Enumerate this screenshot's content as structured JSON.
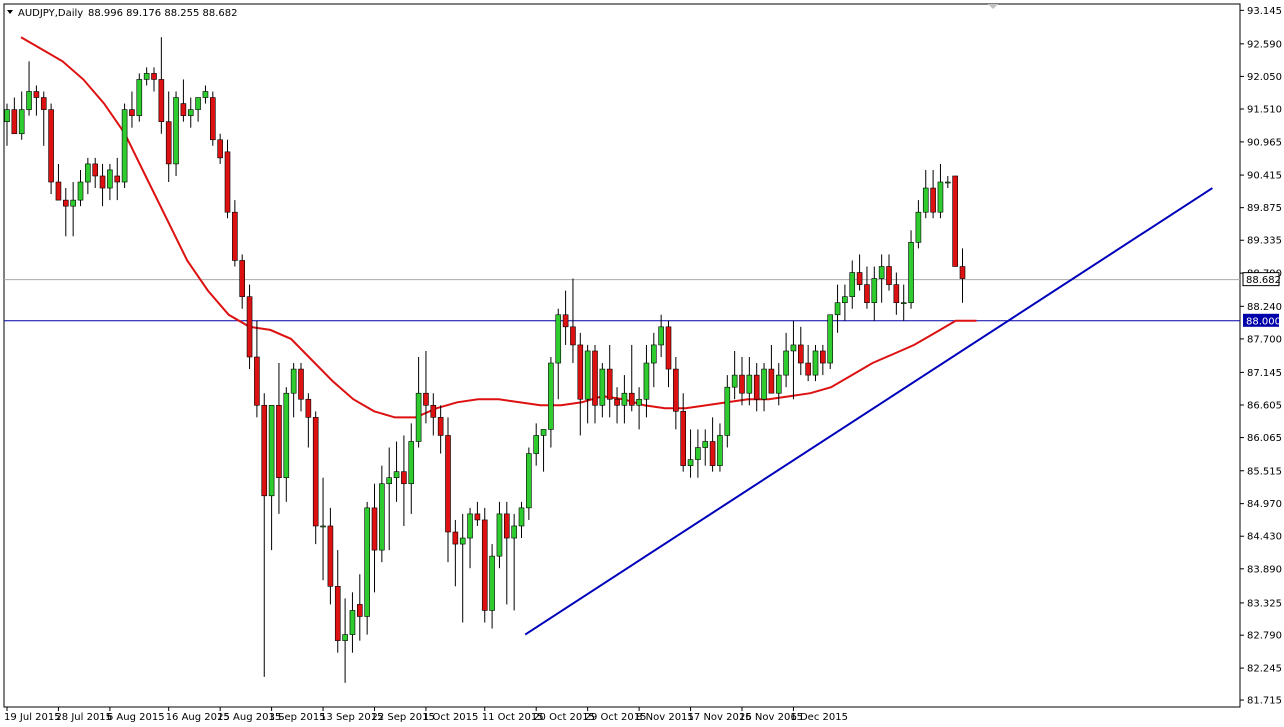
{
  "chart_data": {
    "type": "candlestick",
    "title": "AUDJPY,Daily",
    "ohlc_header": "88.996 89.176 88.255 88.682",
    "ylim": [
      81.6,
      93.25
    ],
    "y_ticks": [
      "93.145",
      "92.590",
      "92.050",
      "91.510",
      "90.965",
      "90.415",
      "89.875",
      "89.335",
      "88.790",
      "88.240",
      "87.700",
      "87.145",
      "86.605",
      "86.065",
      "85.515",
      "84.970",
      "84.430",
      "83.890",
      "83.325",
      "82.790",
      "82.245",
      "81.715"
    ],
    "x_ticks": [
      {
        "i": 0,
        "label": "19 Jul 2015"
      },
      {
        "i": 7,
        "label": "28 Jul 2015"
      },
      {
        "i": 14,
        "label": "6 Aug 2015"
      },
      {
        "i": 22,
        "label": "16 Aug 2015"
      },
      {
        "i": 29,
        "label": "25 Aug 2015"
      },
      {
        "i": 36,
        "label": "3 Sep 2015"
      },
      {
        "i": 43,
        "label": "13 Sep 2015"
      },
      {
        "i": 50,
        "label": "22 Sep 2015"
      },
      {
        "i": 57,
        "label": "1 Oct 2015"
      },
      {
        "i": 65,
        "label": "11 Oct 2015"
      },
      {
        "i": 72,
        "label": "20 Oct 2015"
      },
      {
        "i": 79,
        "label": "29 Oct 2015"
      },
      {
        "i": 86,
        "label": "8 Nov 2015"
      },
      {
        "i": 93,
        "label": "17 Nov 2015"
      },
      {
        "i": 100,
        "label": "26 Nov 2015"
      },
      {
        "i": 107,
        "label": "6 Dec 2015"
      }
    ],
    "current_price": "88.682",
    "level_line": "88.000",
    "colors": {
      "bull": "#2ecc2e",
      "bear": "#dd1111",
      "ma": "#dd1111",
      "trend": "#0000bb",
      "level": "#0000aa",
      "current": "#aaaaaa"
    },
    "candles": [
      [
        91.3,
        91.6,
        90.9,
        91.5
      ],
      [
        91.5,
        91.7,
        91.2,
        91.1
      ],
      [
        91.1,
        91.8,
        91.0,
        91.5
      ],
      [
        91.5,
        92.3,
        91.4,
        91.8
      ],
      [
        91.8,
        91.9,
        91.4,
        91.7
      ],
      [
        91.7,
        91.8,
        90.9,
        91.5
      ],
      [
        91.5,
        91.6,
        90.1,
        90.3
      ],
      [
        90.3,
        90.6,
        90.0,
        90.0
      ],
      [
        90.0,
        90.2,
        89.4,
        89.9
      ],
      [
        89.9,
        90.3,
        89.4,
        90.0
      ],
      [
        90.0,
        90.5,
        89.9,
        90.3
      ],
      [
        90.3,
        90.7,
        90.1,
        90.6
      ],
      [
        90.6,
        90.7,
        90.2,
        90.4
      ],
      [
        90.4,
        90.6,
        89.9,
        90.2
      ],
      [
        90.2,
        90.6,
        90.0,
        90.5
      ],
      [
        90.4,
        90.7,
        90.0,
        90.3
      ],
      [
        90.3,
        91.6,
        90.2,
        91.5
      ],
      [
        91.5,
        91.8,
        91.2,
        91.4
      ],
      [
        91.4,
        92.1,
        91.3,
        92.0
      ],
      [
        92.0,
        92.2,
        91.9,
        92.1
      ],
      [
        92.1,
        92.2,
        91.8,
        92.0
      ],
      [
        92.0,
        92.7,
        91.1,
        91.3
      ],
      [
        91.3,
        91.8,
        90.3,
        90.6
      ],
      [
        90.6,
        91.8,
        90.4,
        91.7
      ],
      [
        91.6,
        92.0,
        91.3,
        91.4
      ],
      [
        91.4,
        91.7,
        91.2,
        91.5
      ],
      [
        91.5,
        91.7,
        91.3,
        91.7
      ],
      [
        91.7,
        91.9,
        91.6,
        91.8
      ],
      [
        91.7,
        91.8,
        90.9,
        91.0
      ],
      [
        91.0,
        91.1,
        90.6,
        90.7
      ],
      [
        90.8,
        91.0,
        89.7,
        89.8
      ],
      [
        89.8,
        90.0,
        88.9,
        89.0
      ],
      [
        89.0,
        89.1,
        88.2,
        88.4
      ],
      [
        88.4,
        88.6,
        87.2,
        87.4
      ],
      [
        87.4,
        88.0,
        86.4,
        86.6
      ],
      [
        86.6,
        86.8,
        82.1,
        85.1
      ],
      [
        85.1,
        86.5,
        84.2,
        86.6
      ],
      [
        86.6,
        87.3,
        84.8,
        85.4
      ],
      [
        85.4,
        86.9,
        85.0,
        86.8
      ],
      [
        86.8,
        87.3,
        86.4,
        87.2
      ],
      [
        87.2,
        87.3,
        86.5,
        86.7
      ],
      [
        86.7,
        86.8,
        85.9,
        86.4
      ],
      [
        86.4,
        86.5,
        84.3,
        84.6
      ],
      [
        84.6,
        85.4,
        83.7,
        84.6
      ],
      [
        84.6,
        84.9,
        83.3,
        83.6
      ],
      [
        83.6,
        84.2,
        82.5,
        82.7
      ],
      [
        82.7,
        83.4,
        82.0,
        82.8
      ],
      [
        82.8,
        83.5,
        82.5,
        83.2
      ],
      [
        83.3,
        83.8,
        82.7,
        83.1
      ],
      [
        83.1,
        85.0,
        82.8,
        84.9
      ],
      [
        84.9,
        85.3,
        83.5,
        84.2
      ],
      [
        84.2,
        85.6,
        84.0,
        85.3
      ],
      [
        85.3,
        85.9,
        84.2,
        85.4
      ],
      [
        85.4,
        86.0,
        85.0,
        85.5
      ],
      [
        85.5,
        86.1,
        84.6,
        85.3
      ],
      [
        85.3,
        86.3,
        84.8,
        86.0
      ],
      [
        86.0,
        87.4,
        85.9,
        86.8
      ],
      [
        86.8,
        87.5,
        86.3,
        86.6
      ],
      [
        86.6,
        86.8,
        86.1,
        86.4
      ],
      [
        86.4,
        86.6,
        85.8,
        86.1
      ],
      [
        86.1,
        86.4,
        84.0,
        84.5
      ],
      [
        84.5,
        84.7,
        83.6,
        84.3
      ],
      [
        84.3,
        84.8,
        83.0,
        84.4
      ],
      [
        84.4,
        84.9,
        83.9,
        84.8
      ],
      [
        84.8,
        85.0,
        84.6,
        84.7
      ],
      [
        84.7,
        84.9,
        83.0,
        83.2
      ],
      [
        83.2,
        84.3,
        82.9,
        84.1
      ],
      [
        84.1,
        85.0,
        83.9,
        84.8
      ],
      [
        84.8,
        85.0,
        83.3,
        84.4
      ],
      [
        84.4,
        84.8,
        83.2,
        84.6
      ],
      [
        84.6,
        85.0,
        84.4,
        84.9
      ],
      [
        84.9,
        85.9,
        84.7,
        85.8
      ],
      [
        85.8,
        86.3,
        85.6,
        86.1
      ],
      [
        86.1,
        86.2,
        85.5,
        86.2
      ],
      [
        86.2,
        87.4,
        85.9,
        87.3
      ],
      [
        87.3,
        88.2,
        86.7,
        88.1
      ],
      [
        88.1,
        88.5,
        87.6,
        87.9
      ],
      [
        87.9,
        88.7,
        87.3,
        87.6
      ],
      [
        87.6,
        87.8,
        86.1,
        86.7
      ],
      [
        86.7,
        87.6,
        86.3,
        87.5
      ],
      [
        87.5,
        87.6,
        86.3,
        86.6
      ],
      [
        86.6,
        87.3,
        86.4,
        87.2
      ],
      [
        87.2,
        87.6,
        86.4,
        86.7
      ],
      [
        86.7,
        86.9,
        86.3,
        86.6
      ]
    ],
    "candles_b": [
      [
        86.6,
        87.1,
        86.3,
        86.8
      ],
      [
        86.8,
        87.6,
        86.5,
        86.6
      ],
      [
        86.6,
        86.9,
        86.2,
        86.7
      ],
      [
        86.7,
        87.6,
        86.4,
        87.3
      ],
      [
        87.3,
        87.8,
        86.9,
        87.6
      ],
      [
        87.6,
        88.1,
        87.4,
        87.9
      ],
      [
        87.9,
        88.0,
        86.9,
        87.2
      ],
      [
        87.2,
        87.4,
        86.2,
        86.5
      ],
      [
        86.5,
        86.8,
        85.5,
        85.6
      ],
      [
        85.6,
        86.2,
        85.4,
        85.7
      ],
      [
        85.7,
        86.2,
        85.4,
        85.9
      ],
      [
        85.9,
        86.2,
        85.6,
        86.0
      ],
      [
        86.0,
        86.4,
        85.5,
        85.6
      ],
      [
        85.6,
        86.3,
        85.5,
        86.1
      ],
      [
        86.1,
        87.1,
        85.9,
        86.9
      ],
      [
        86.9,
        87.5,
        86.7,
        87.1
      ],
      [
        87.1,
        87.4,
        86.6,
        86.8
      ],
      [
        86.8,
        87.4,
        86.6,
        87.1
      ],
      [
        87.1,
        87.3,
        86.5,
        86.7
      ],
      [
        86.7,
        87.3,
        86.5,
        87.2
      ],
      [
        87.2,
        87.6,
        86.8,
        86.8
      ],
      [
        86.8,
        87.3,
        86.6,
        87.1
      ],
      [
        87.1,
        87.8,
        86.9,
        87.5
      ],
      [
        87.5,
        88.0,
        86.7,
        87.6
      ],
      [
        87.6,
        87.9,
        87.1,
        87.3
      ],
      [
        87.3,
        87.6,
        87.0,
        87.1
      ],
      [
        87.1,
        87.6,
        87.0,
        87.5
      ],
      [
        87.5,
        87.6,
        87.1,
        87.3
      ],
      [
        87.3,
        88.1,
        87.2,
        88.1
      ],
      [
        88.1,
        88.6,
        87.8,
        88.3
      ],
      [
        88.3,
        88.6,
        88.0,
        88.4
      ],
      [
        88.4,
        89.0,
        88.2,
        88.8
      ],
      [
        88.8,
        89.1,
        88.5,
        88.6
      ],
      [
        88.6,
        88.9,
        88.2,
        88.3
      ],
      [
        88.3,
        88.9,
        88.0,
        88.7
      ],
      [
        88.7,
        89.1,
        88.3,
        88.9
      ],
      [
        88.9,
        89.1,
        88.5,
        88.6
      ],
      [
        88.6,
        88.8,
        88.1,
        88.3
      ],
      [
        88.3,
        88.6,
        88.0,
        88.3
      ],
      [
        88.3,
        89.5,
        88.2,
        89.3
      ],
      [
        89.3,
        90.0,
        89.2,
        89.8
      ],
      [
        89.8,
        90.5,
        89.7,
        90.2
      ],
      [
        90.2,
        90.5,
        89.7,
        89.8
      ],
      [
        89.8,
        90.6,
        89.7,
        90.3
      ],
      [
        90.3,
        90.4,
        90.2,
        90.3
      ],
      [
        90.4,
        90.4,
        88.9,
        88.9
      ],
      [
        88.9,
        89.2,
        88.3,
        88.7
      ]
    ],
    "moving_average": [
      92.7,
      92.5,
      92.3,
      92.0,
      91.6,
      91.1,
      90.4,
      89.7,
      89.0,
      88.5,
      88.1,
      87.9,
      87.85,
      87.7,
      87.35,
      87.0,
      86.7,
      86.5,
      86.4,
      86.4,
      86.55,
      86.65,
      86.7,
      86.7,
      86.65,
      86.6,
      86.6,
      86.65,
      86.75,
      86.7,
      86.6,
      86.55,
      86.55,
      86.6,
      86.65,
      86.7,
      86.7,
      86.75,
      86.8,
      86.9,
      87.1,
      87.3,
      87.45,
      87.6,
      87.8,
      88.0,
      88.0
    ],
    "trendline": {
      "x1": 70.5,
      "y1": 82.8,
      "x2": 164,
      "y2": 90.2
    }
  }
}
